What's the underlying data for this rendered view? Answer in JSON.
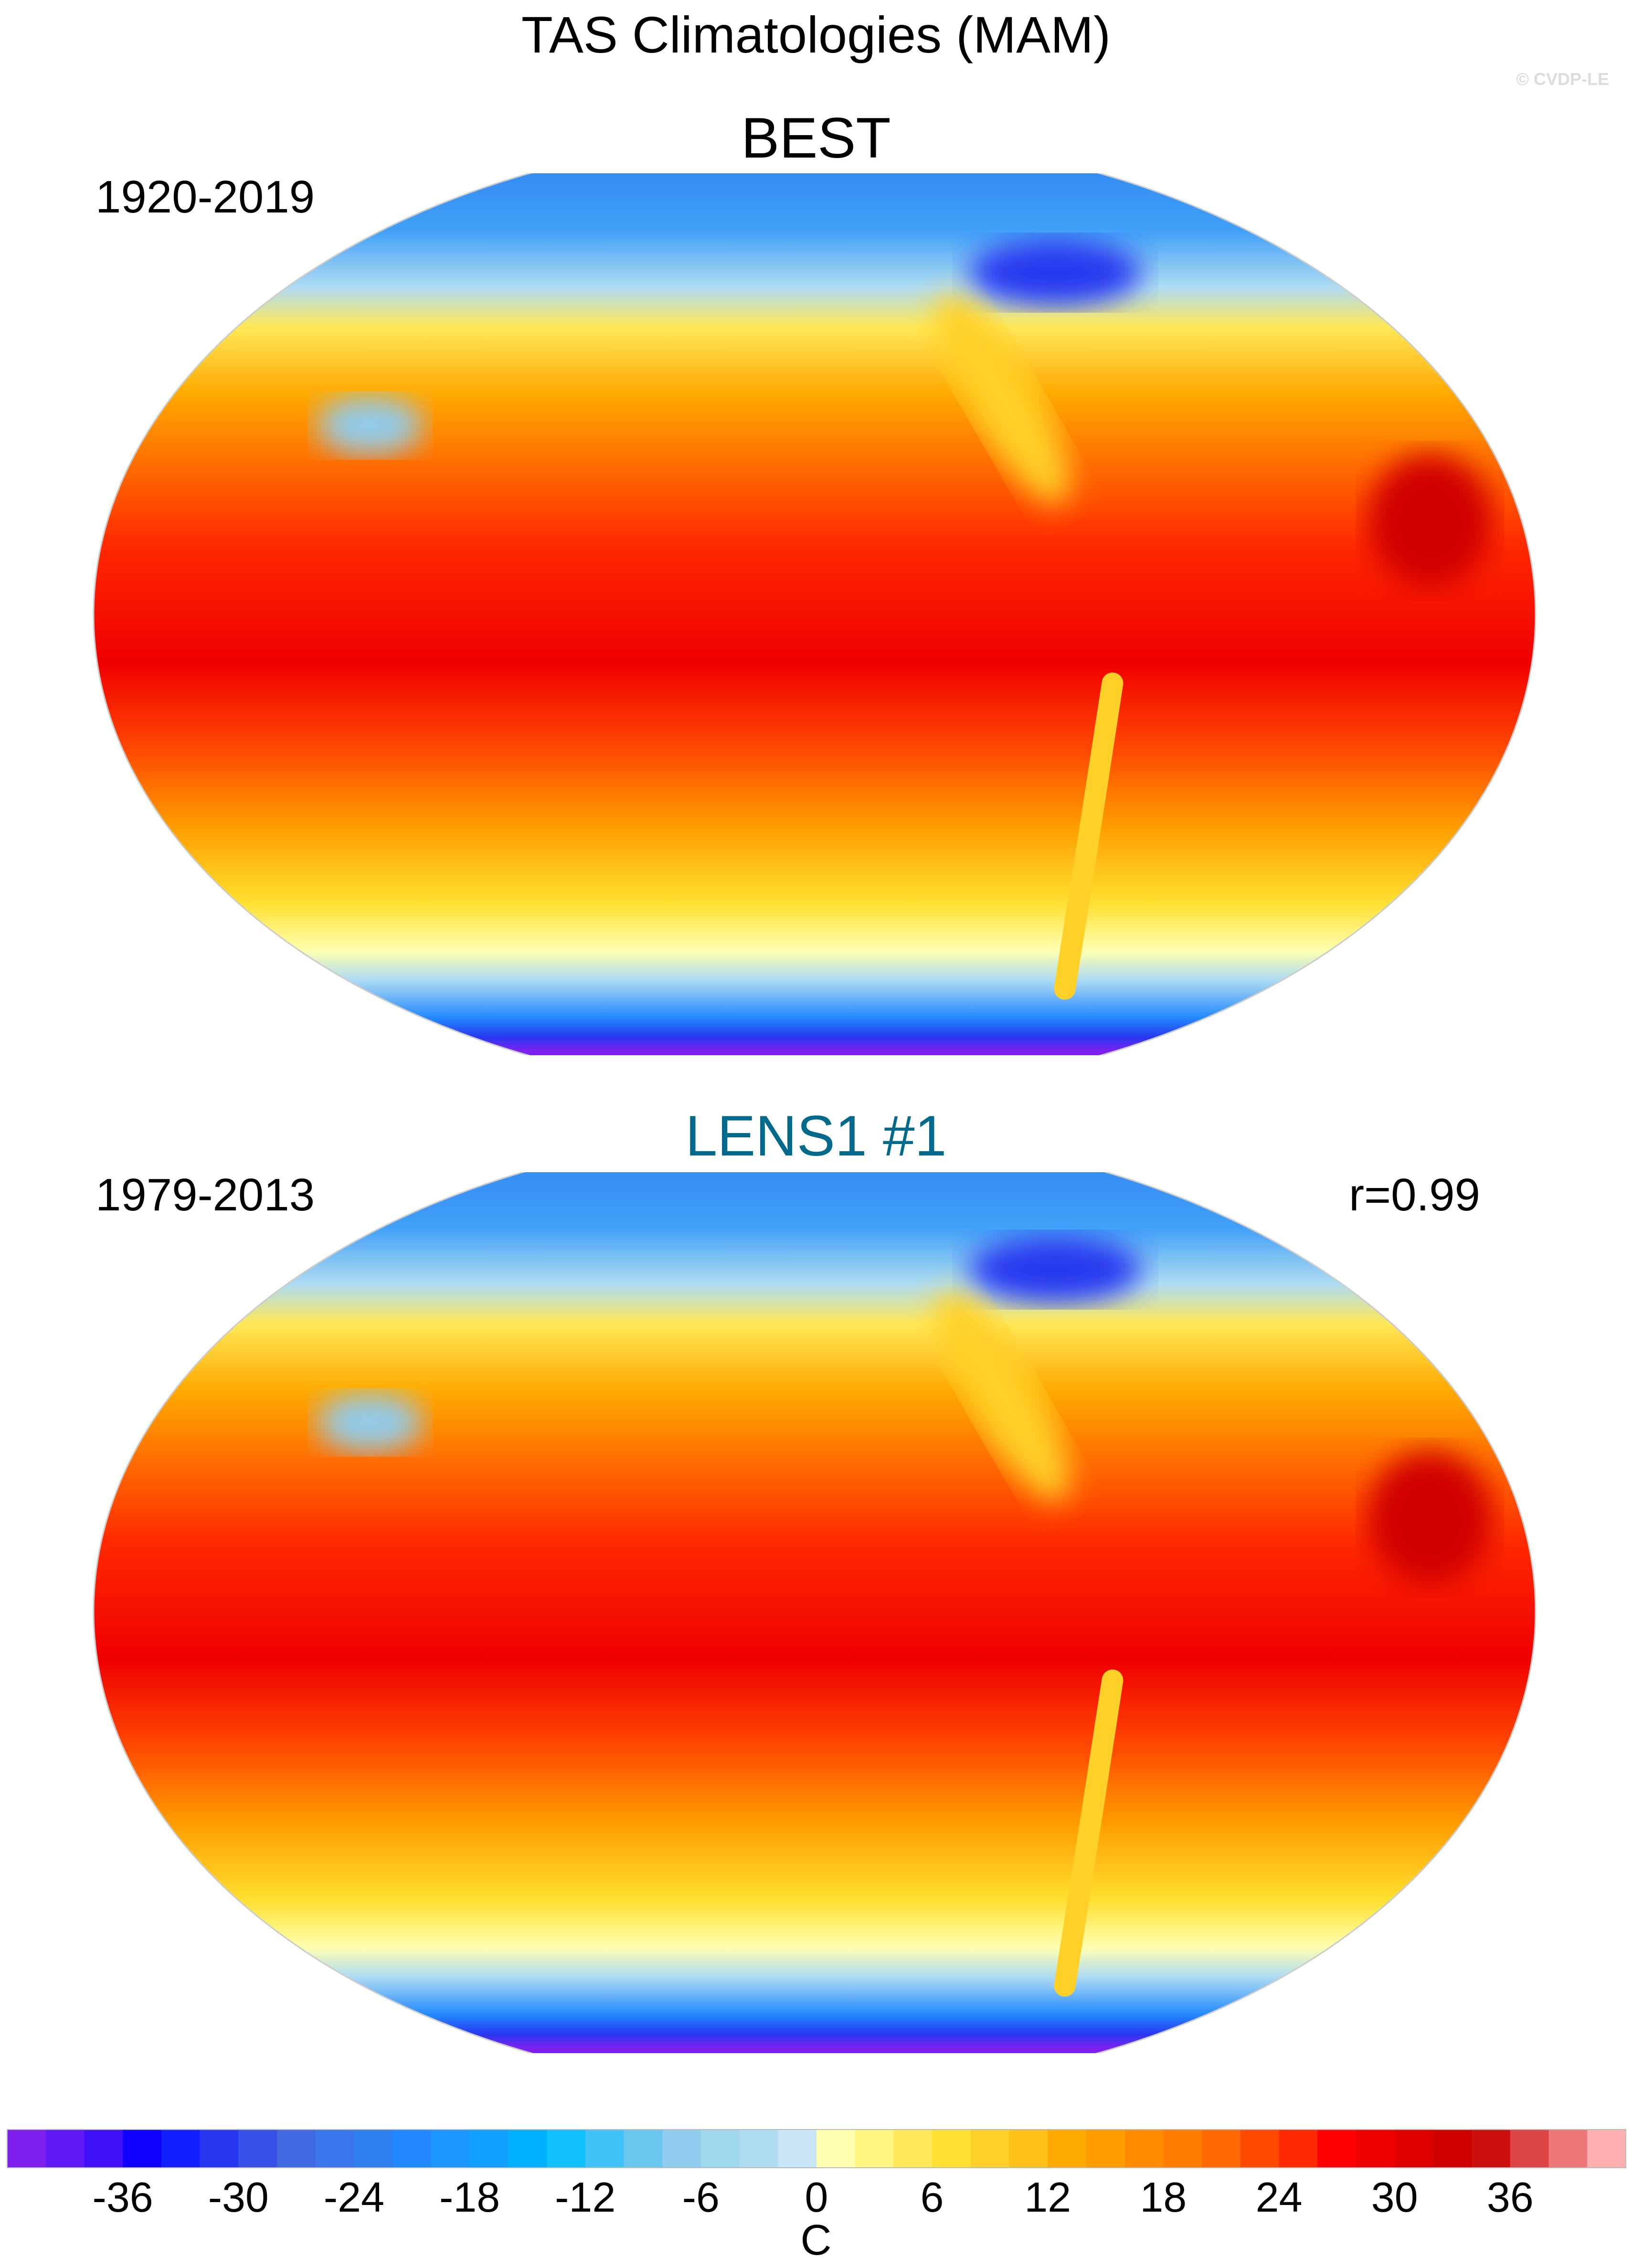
{
  "chart_data": {
    "type": "heatmap",
    "title": "TAS Climatologies (MAM)",
    "watermark": "© CVDP-LE",
    "units_label": "C",
    "panels": [
      {
        "title": "BEST",
        "period": "1920-2019",
        "correlation": "",
        "title_color": "#000000"
      },
      {
        "title": "LENS1 #1",
        "period": "1979-2013",
        "correlation": "r=0.99",
        "title_color": "#006a8c"
      }
    ],
    "colorbar": {
      "levels_min": -40,
      "levels_max": 40,
      "level_step": 2,
      "tick_labels": [
        "-36",
        "-30",
        "-24",
        "-18",
        "-12",
        "-6",
        "0",
        "6",
        "12",
        "18",
        "24",
        "30",
        "36"
      ],
      "tick_values": [
        -36,
        -30,
        -24,
        -18,
        -12,
        -6,
        0,
        6,
        12,
        18,
        24,
        30,
        36
      ],
      "colors": [
        "#8020f0",
        "#6018f5",
        "#4010f8",
        "#1000ff",
        "#1020ff",
        "#2838f0",
        "#3850e8",
        "#4068e0",
        "#3a75ec",
        "#2e80f0",
        "#2288ff",
        "#1a96ff",
        "#10a0ff",
        "#00b0ff",
        "#10c0ff",
        "#40c4f8",
        "#68c8f0",
        "#90ccee",
        "#a0d8ee",
        "#b0dcf2",
        "#c8e6f6",
        "#ffffb0",
        "#fff580",
        "#ffe858",
        "#ffe030",
        "#ffd028",
        "#ffc018",
        "#ffaa00",
        "#ff9c00",
        "#ff8c00",
        "#ff7c00",
        "#ff6800",
        "#ff4800",
        "#ff2800",
        "#ff0000",
        "#f00000",
        "#e00000",
        "#d00000",
        "#cc1010",
        "#dd4444",
        "#ee7777",
        "#ffb0b0"
      ]
    }
  }
}
